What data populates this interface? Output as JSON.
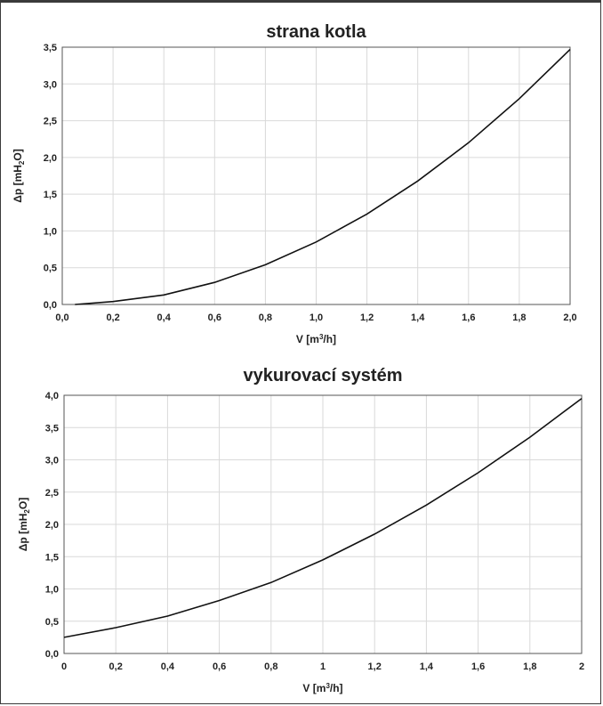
{
  "chart_data": [
    {
      "type": "line",
      "title": "strana kotla",
      "xlabel_main": "V [m",
      "xlabel_sup": "3",
      "xlabel_rest": "/h]",
      "ylabel_pre": "Δp [mH",
      "ylabel_sub": "2",
      "ylabel_post": "O]",
      "xlim": [
        0,
        2
      ],
      "ylim": [
        0,
        3.5
      ],
      "x_ticks": [
        "0,0",
        "0,2",
        "0,4",
        "0,6",
        "0,8",
        "1,0",
        "1,2",
        "1,4",
        "1,6",
        "1,8",
        "2,0"
      ],
      "y_ticks": [
        "0,0",
        "0,5",
        "1,0",
        "1,5",
        "2,0",
        "2,5",
        "3,0",
        "3,5"
      ],
      "grid": true,
      "series": [
        {
          "x": [
            0.05,
            0.2,
            0.4,
            0.6,
            0.8,
            1.0,
            1.2,
            1.4,
            1.6,
            1.8,
            2.0
          ],
          "y": [
            0.0,
            0.04,
            0.13,
            0.3,
            0.54,
            0.85,
            1.23,
            1.68,
            2.2,
            2.8,
            3.47
          ]
        }
      ]
    },
    {
      "type": "line",
      "title": "vykurovací systém",
      "xlabel_main": "V [m",
      "xlabel_sup": "3",
      "xlabel_rest": "/h]",
      "ylabel_pre": "Δp [mH",
      "ylabel_sub": "2",
      "ylabel_post": "O]",
      "xlim": [
        0,
        2
      ],
      "ylim": [
        0,
        4
      ],
      "x_ticks": [
        "0",
        "0,2",
        "0,4",
        "0,6",
        "0,8",
        "1",
        "1,2",
        "1,4",
        "1,6",
        "1,8",
        "2"
      ],
      "y_ticks": [
        "0,0",
        "0,5",
        "1,0",
        "1,5",
        "2,0",
        "2,5",
        "3,0",
        "3,5",
        "4,0"
      ],
      "grid": true,
      "series": [
        {
          "x": [
            0,
            0.2,
            0.4,
            0.6,
            0.8,
            1.0,
            1.2,
            1.4,
            1.6,
            1.8,
            2.0
          ],
          "y": [
            0.25,
            0.4,
            0.58,
            0.82,
            1.1,
            1.45,
            1.85,
            2.3,
            2.8,
            3.35,
            3.95
          ]
        }
      ]
    }
  ]
}
